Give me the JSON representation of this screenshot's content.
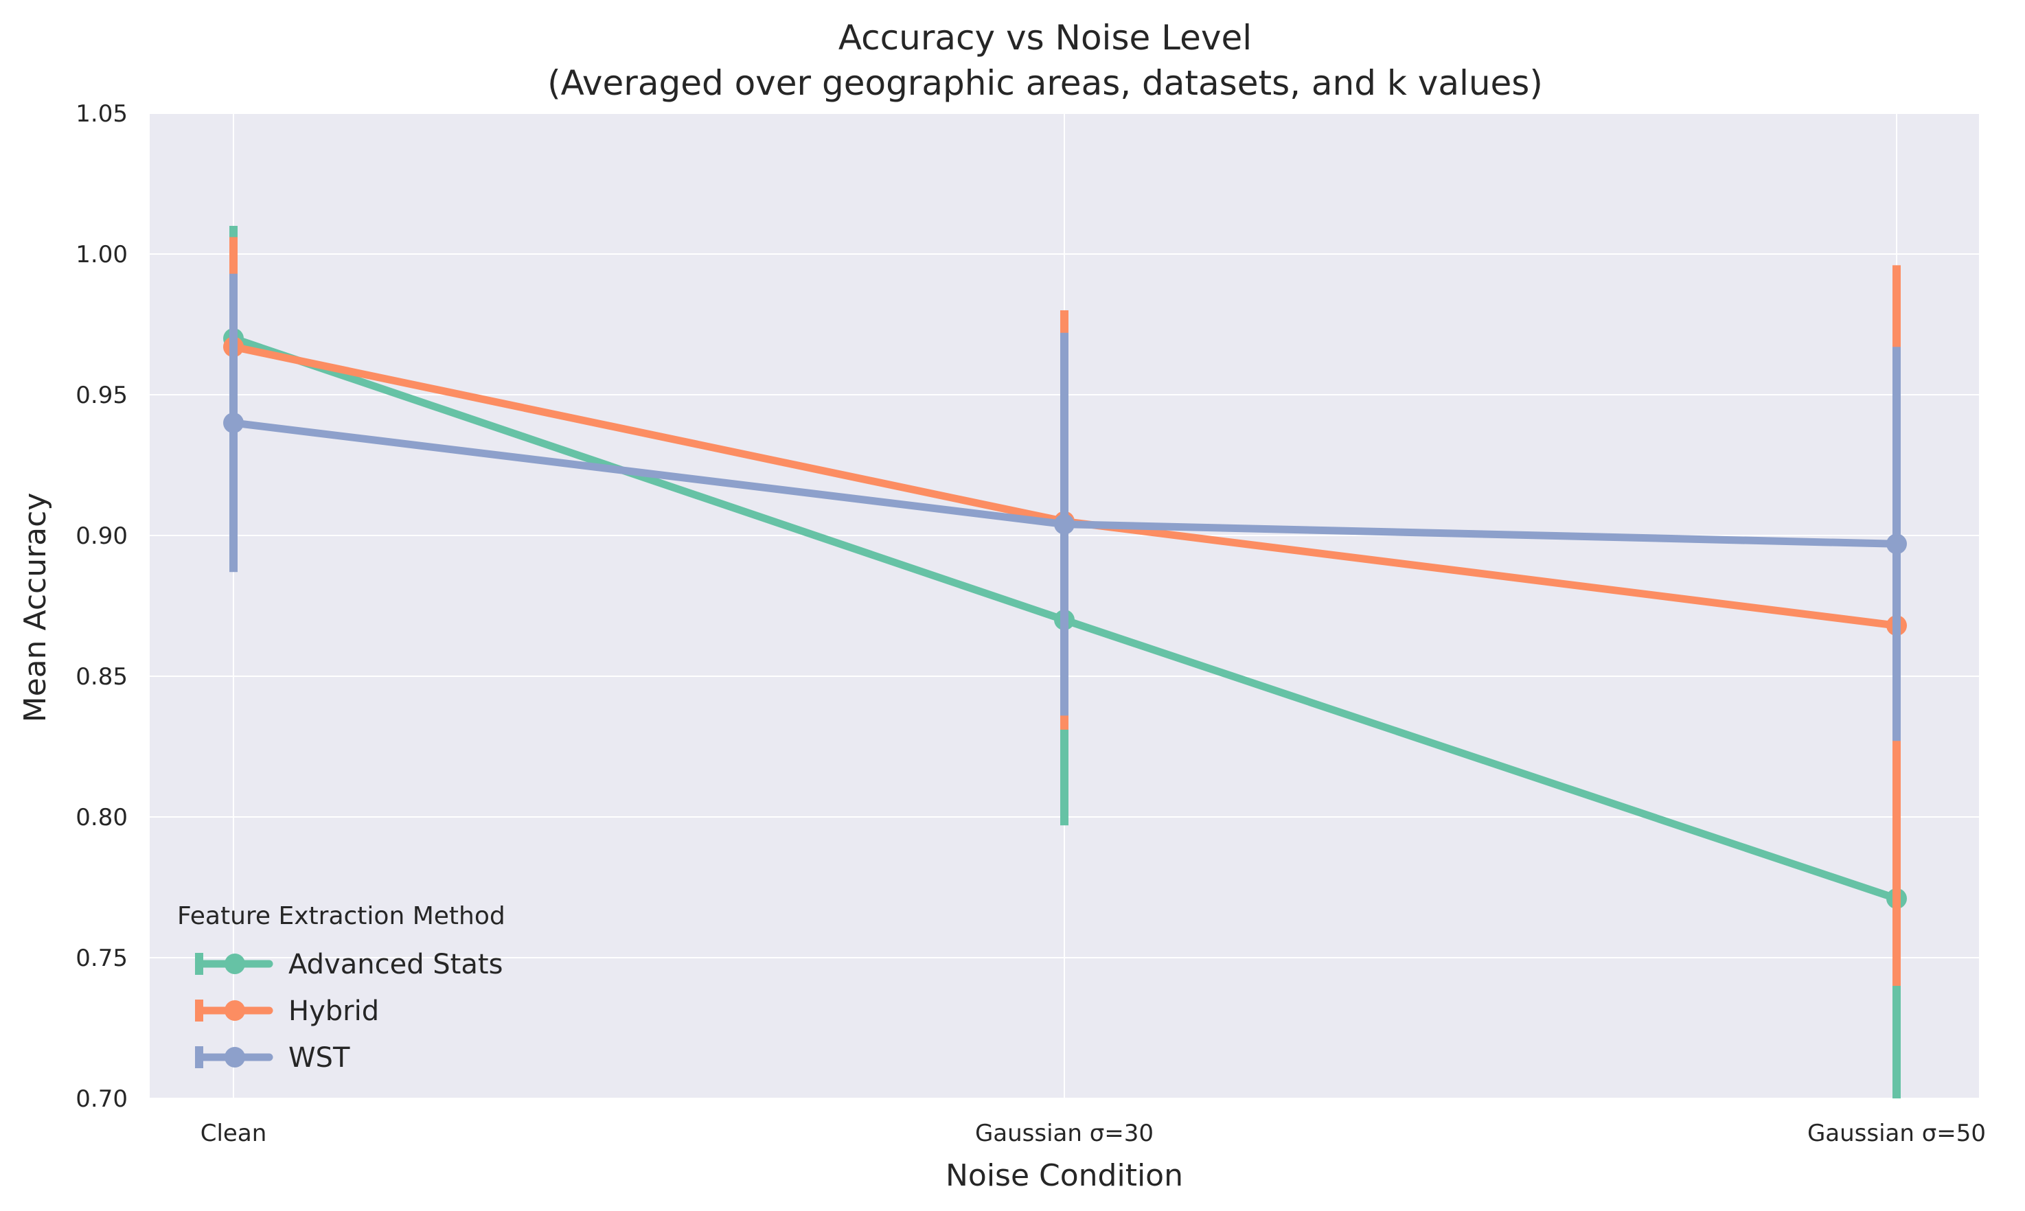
{
  "chart_data": {
    "type": "line",
    "title": "Accuracy vs Noise Level",
    "subtitle": "(Averaged over geographic areas, datasets, and k values)",
    "xlabel": "Noise Condition",
    "ylabel": "Mean Accuracy",
    "categories": [
      "Clean",
      "Gaussian σ=30",
      "Gaussian σ=50"
    ],
    "ylim": [
      0.7,
      1.05
    ],
    "yticks": [
      "0.70",
      "0.75",
      "0.80",
      "0.85",
      "0.90",
      "0.95",
      "1.00",
      "1.05"
    ],
    "grid": true,
    "legend": {
      "title": "Feature Extraction Method",
      "placement": "lower-left"
    },
    "series": [
      {
        "name": "Advanced Stats",
        "color": "#66c2a5",
        "values": [
          0.97,
          0.87,
          0.771
        ],
        "err_low": [
          0.93,
          0.797,
          0.7
        ],
        "err_high": [
          1.01,
          0.943,
          0.842
        ]
      },
      {
        "name": "Hybrid",
        "color": "#fc8d62",
        "values": [
          0.967,
          0.905,
          0.868
        ],
        "err_low": [
          0.929,
          0.831,
          0.74
        ],
        "err_high": [
          1.006,
          0.98,
          0.996
        ]
      },
      {
        "name": "WST",
        "color": "#8da0cb",
        "values": [
          0.94,
          0.904,
          0.897
        ],
        "err_low": [
          0.887,
          0.836,
          0.827
        ],
        "err_high": [
          0.993,
          0.972,
          0.967
        ]
      }
    ]
  }
}
